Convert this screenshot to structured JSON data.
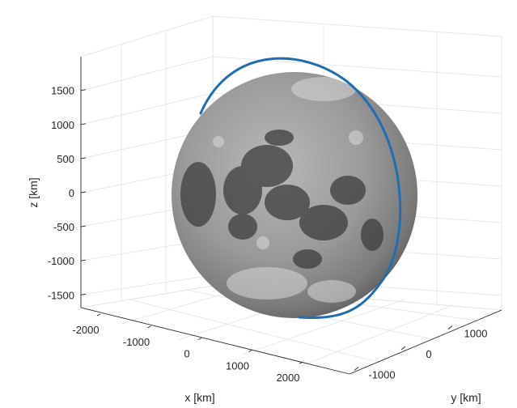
{
  "chart_data": {
    "type": "3d-surface-with-line",
    "title": "",
    "xlabel": "x [km]",
    "ylabel": "y [km]",
    "zlabel": "z [km]",
    "x_ticks": [
      "-2000",
      "-1000",
      "0",
      "1000",
      "2000"
    ],
    "y_ticks": [
      "-1000",
      "0",
      "1000"
    ],
    "z_ticks": [
      "1500",
      "1000",
      "500",
      "0",
      "-500",
      "-1000",
      "-1500"
    ],
    "x_tick_values": [
      -2000,
      -1000,
      0,
      1000,
      2000
    ],
    "y_tick_values": [
      -1000,
      0,
      1000
    ],
    "z_tick_values": [
      1500,
      1000,
      500,
      0,
      -500,
      -1000,
      -1500
    ],
    "grid": true,
    "surface": {
      "shape": "sphere",
      "texture": "moon",
      "radius_km": 1737
    },
    "orbit": {
      "shape": "circular",
      "radius_km": 1900,
      "color": "#1f6fb0"
    }
  }
}
